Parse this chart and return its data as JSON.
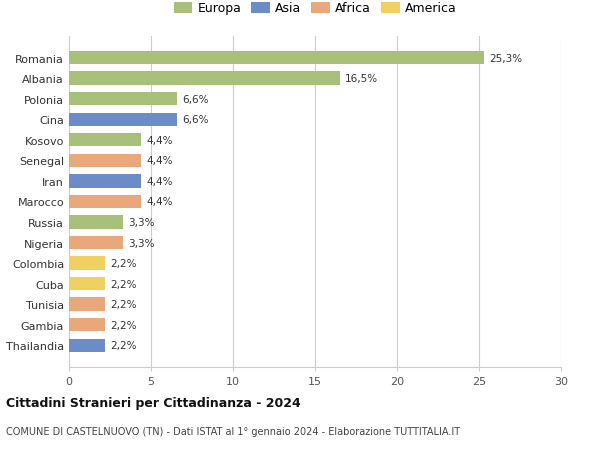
{
  "countries": [
    "Romania",
    "Albania",
    "Polonia",
    "Cina",
    "Kosovo",
    "Senegal",
    "Iran",
    "Marocco",
    "Russia",
    "Nigeria",
    "Colombia",
    "Cuba",
    "Tunisia",
    "Gambia",
    "Thailandia"
  ],
  "values": [
    25.3,
    16.5,
    6.6,
    6.6,
    4.4,
    4.4,
    4.4,
    4.4,
    3.3,
    3.3,
    2.2,
    2.2,
    2.2,
    2.2,
    2.2
  ],
  "labels": [
    "25,3%",
    "16,5%",
    "6,6%",
    "6,6%",
    "4,4%",
    "4,4%",
    "4,4%",
    "4,4%",
    "3,3%",
    "3,3%",
    "2,2%",
    "2,2%",
    "2,2%",
    "2,2%",
    "2,2%"
  ],
  "colors": [
    "#a8c07a",
    "#a8c07a",
    "#a8c07a",
    "#6b8cc7",
    "#a8c07a",
    "#e8a87c",
    "#6b8cc7",
    "#e8a87c",
    "#a8c07a",
    "#e8a87c",
    "#f0d060",
    "#f0d060",
    "#e8a87c",
    "#e8a87c",
    "#6b8cc7"
  ],
  "legend": {
    "Europa": "#a8c07a",
    "Asia": "#6b8cc7",
    "Africa": "#e8a87c",
    "America": "#f0d060"
  },
  "title1": "Cittadini Stranieri per Cittadinanza - 2024",
  "title2": "COMUNE DI CASTELNUOVO (TN) - Dati ISTAT al 1° gennaio 2024 - Elaborazione TUTTITALIA.IT",
  "xlim": [
    0,
    30
  ],
  "xticks": [
    0,
    5,
    10,
    15,
    20,
    25,
    30
  ],
  "background_color": "#ffffff",
  "grid_color": "#cccccc"
}
